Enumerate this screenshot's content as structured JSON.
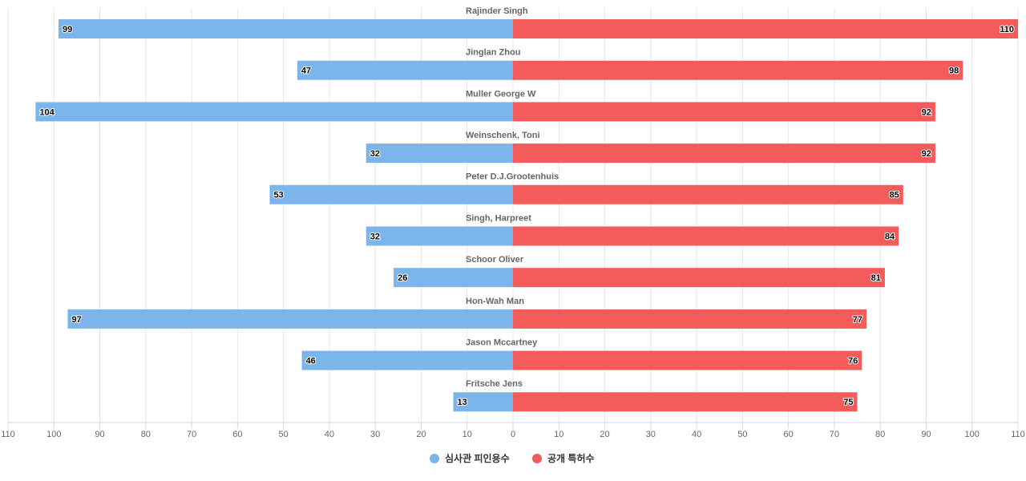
{
  "chart_data": {
    "type": "butterfly",
    "categories": [
      "Rajinder Singh",
      "Jinglan Zhou",
      "Muller George W",
      "Weinschenk, Toni",
      "Peter D.J.Grootenhuis",
      "Singh, Harpreet",
      "Schoor Oliver",
      "Hon-Wah Man",
      "Jason Mccartney",
      "Fritsche Jens"
    ],
    "series": [
      {
        "name": "심사관 피인용수",
        "color": "#7cb5ec",
        "side": "left",
        "values": [
          99,
          47,
          104,
          32,
          53,
          32,
          26,
          97,
          46,
          13
        ]
      },
      {
        "name": "공개 특허수",
        "color": "#f45b5b",
        "side": "right",
        "values": [
          110,
          98,
          92,
          92,
          85,
          84,
          81,
          77,
          76,
          75
        ]
      }
    ],
    "xlim": [
      0,
      110
    ],
    "xticks": [
      0,
      10,
      20,
      30,
      40,
      50,
      60,
      70,
      80,
      90,
      100,
      110
    ],
    "grid": true,
    "legend": "bottom"
  }
}
